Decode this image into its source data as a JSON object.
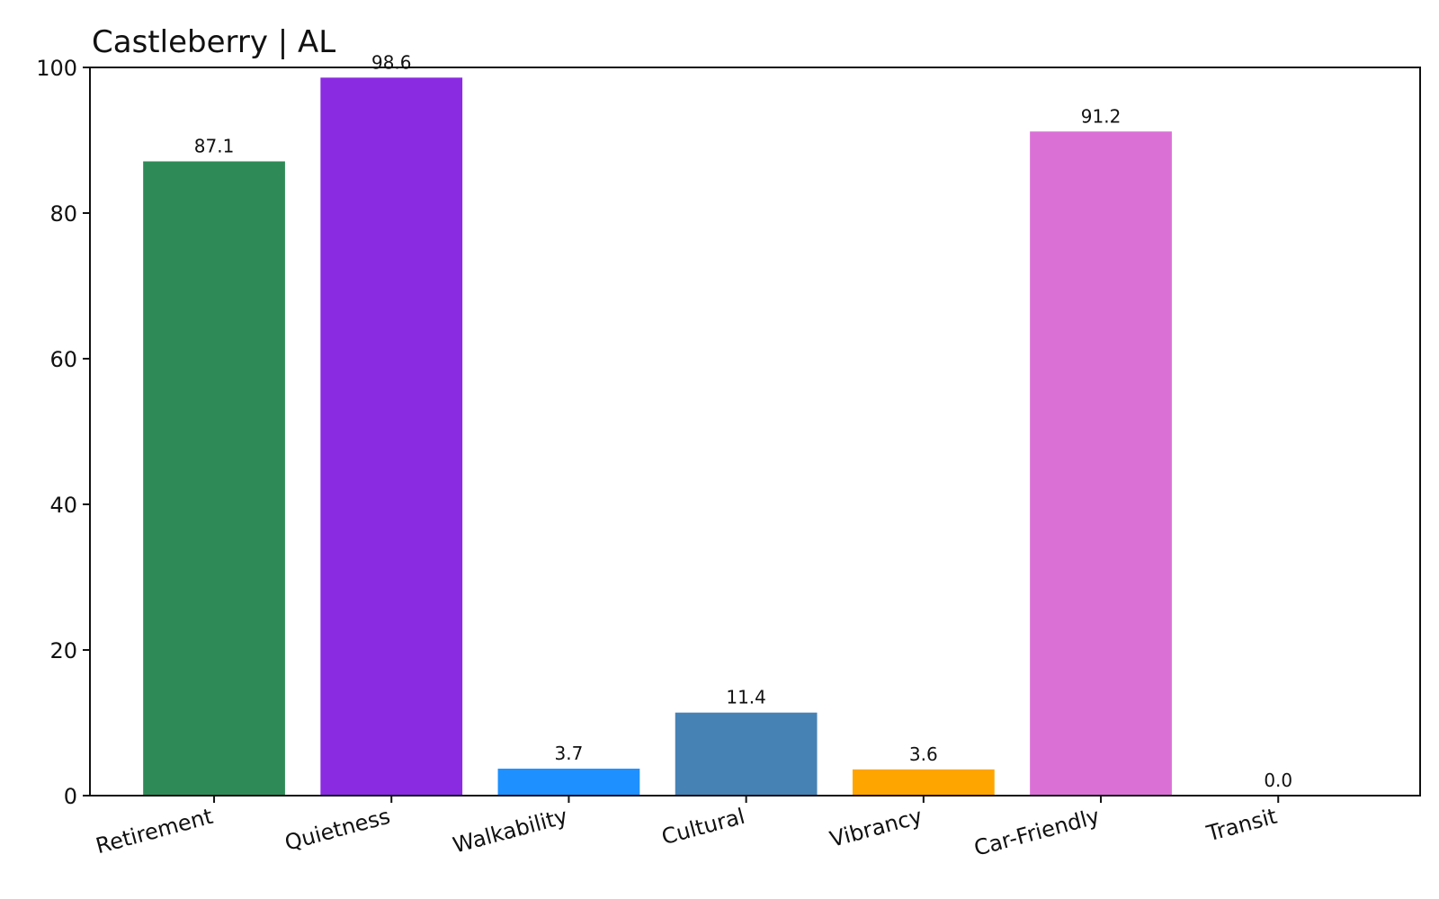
{
  "chart_data": {
    "type": "bar",
    "title": "Castleberry | AL",
    "xlabel": "",
    "ylabel": "",
    "categories": [
      "Retirement",
      "Quietness",
      "Walkability",
      "Cultural",
      "Vibrancy",
      "Car-Friendly",
      "Transit"
    ],
    "values": [
      87.1,
      98.6,
      3.7,
      11.4,
      3.6,
      91.2,
      0.0
    ],
    "value_labels": [
      "87.1",
      "98.6",
      "3.7",
      "11.4",
      "3.6",
      "91.2",
      "0.0"
    ],
    "colors": [
      "#2e8b57",
      "#8a2be2",
      "#1e90ff",
      "#4682b4",
      "#ffa500",
      "#da70d6",
      "#808080"
    ],
    "ylim": [
      0,
      100
    ],
    "yticks": [
      0,
      20,
      40,
      60,
      80,
      100
    ],
    "ytick_labels": [
      "0",
      "20",
      "40",
      "60",
      "80",
      "100"
    ],
    "xtick_rotation": 15,
    "grid": false,
    "legend": "none"
  }
}
